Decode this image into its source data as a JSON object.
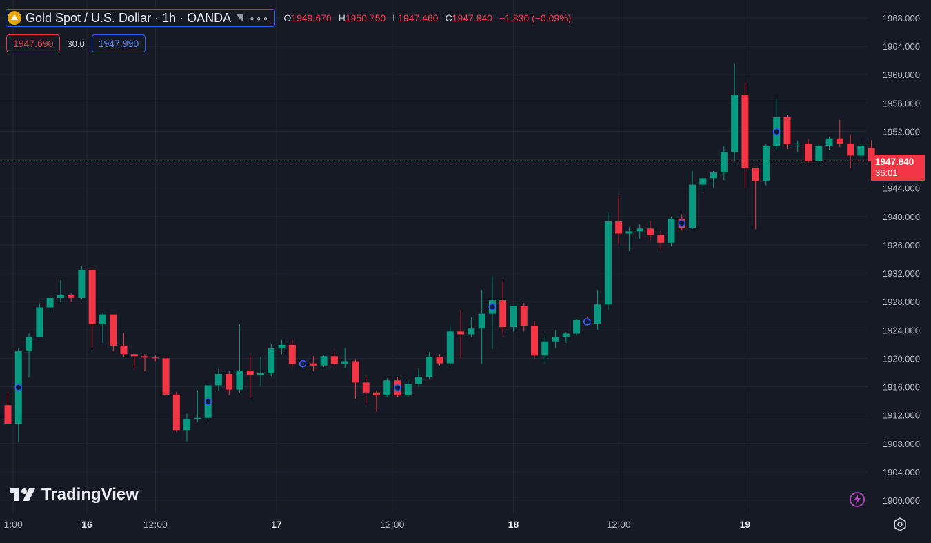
{
  "header": {
    "symbol_title": "Gold Spot / U.S. Dollar · 1h · OANDA",
    "more_label": "∘∘∘",
    "open_key": "O",
    "open": "1949.670",
    "high_key": "H",
    "high": "1950.750",
    "low_key": "L",
    "low": "1947.460",
    "close_key": "C",
    "close": "1947.840",
    "change": "−1.830 (−0.09%)"
  },
  "quote": {
    "bid": "1947.690",
    "spread": "30.0",
    "ask": "1947.990"
  },
  "last_price": {
    "price": "1947.840",
    "countdown": "36:01"
  },
  "brand": {
    "name": "TradingView"
  },
  "colors": {
    "background": "#161a25",
    "grid": "#222633",
    "up": "#089981",
    "down": "#f23645",
    "axis_text": "#b2b5be",
    "marker": "#2962ff"
  },
  "chart_data": {
    "type": "candlestick",
    "title": "Gold Spot / U.S. Dollar · 1h · OANDA",
    "ylim": [
      1898,
      1969
    ],
    "y_ticks": [
      "1968.000",
      "1964.000",
      "1960.000",
      "1956.000",
      "1952.000",
      "1948.000",
      "1944.000",
      "1940.000",
      "1936.000",
      "1932.000",
      "1928.000",
      "1924.000",
      "1920.000",
      "1916.000",
      "1912.000",
      "1908.000",
      "1904.000",
      "1900.000"
    ],
    "x_tick_labels": [
      "1:00",
      "16",
      "12:00",
      "17",
      "12:00",
      "18",
      "12:00",
      "19"
    ],
    "x_tick_bars": [
      0.5,
      7.5,
      14,
      25.5,
      36.5,
      48,
      58,
      70
    ],
    "grid": true,
    "last_price_line": 1947.84,
    "candles": [
      {
        "o": 1913.4,
        "h": 1915.2,
        "l": 1910.8,
        "c": 1910.8
      },
      {
        "o": 1910.8,
        "h": 1921.5,
        "l": 1908.2,
        "c": 1921.0
      },
      {
        "o": 1921.0,
        "h": 1923.5,
        "l": 1917.3,
        "c": 1923.0
      },
      {
        "o": 1923.0,
        "h": 1927.8,
        "l": 1923.0,
        "c": 1927.2
      },
      {
        "o": 1927.2,
        "h": 1928.6,
        "l": 1926.7,
        "c": 1928.5
      },
      {
        "o": 1928.5,
        "h": 1931.0,
        "l": 1927.9,
        "c": 1928.9
      },
      {
        "o": 1928.9,
        "h": 1929.2,
        "l": 1928.0,
        "c": 1928.5
      },
      {
        "o": 1928.5,
        "h": 1933.0,
        "l": 1928.3,
        "c": 1932.5
      },
      {
        "o": 1932.5,
        "h": 1932.5,
        "l": 1921.4,
        "c": 1924.8
      },
      {
        "o": 1924.8,
        "h": 1926.4,
        "l": 1922.2,
        "c": 1926.2
      },
      {
        "o": 1926.2,
        "h": 1926.2,
        "l": 1921.0,
        "c": 1921.8
      },
      {
        "o": 1921.8,
        "h": 1923.6,
        "l": 1920.2,
        "c": 1920.6
      },
      {
        "o": 1920.6,
        "h": 1920.6,
        "l": 1918.6,
        "c": 1920.3
      },
      {
        "o": 1920.3,
        "h": 1920.6,
        "l": 1918.2,
        "c": 1920.1
      },
      {
        "o": 1920.1,
        "h": 1920.4,
        "l": 1919.6,
        "c": 1920.0
      },
      {
        "o": 1920.0,
        "h": 1920.3,
        "l": 1914.6,
        "c": 1914.9
      },
      {
        "o": 1914.9,
        "h": 1915.3,
        "l": 1909.6,
        "c": 1909.9
      },
      {
        "o": 1909.9,
        "h": 1912.2,
        "l": 1908.3,
        "c": 1911.4
      },
      {
        "o": 1911.4,
        "h": 1915.5,
        "l": 1911.0,
        "c": 1911.6
      },
      {
        "o": 1911.6,
        "h": 1916.5,
        "l": 1911.3,
        "c": 1916.2
      },
      {
        "o": 1916.2,
        "h": 1918.5,
        "l": 1915.4,
        "c": 1917.8
      },
      {
        "o": 1917.8,
        "h": 1918.2,
        "l": 1914.8,
        "c": 1915.6
      },
      {
        "o": 1915.6,
        "h": 1924.8,
        "l": 1915.2,
        "c": 1918.3
      },
      {
        "o": 1918.3,
        "h": 1920.5,
        "l": 1914.4,
        "c": 1917.6
      },
      {
        "o": 1917.6,
        "h": 1920.2,
        "l": 1916.1,
        "c": 1917.9
      },
      {
        "o": 1917.9,
        "h": 1922.1,
        "l": 1917.5,
        "c": 1921.4
      },
      {
        "o": 1921.4,
        "h": 1922.6,
        "l": 1920.6,
        "c": 1921.9
      },
      {
        "o": 1921.9,
        "h": 1922.6,
        "l": 1918.8,
        "c": 1919.2
      },
      {
        "o": 1919.2,
        "h": 1919.7,
        "l": 1918.6,
        "c": 1919.3
      },
      {
        "o": 1919.3,
        "h": 1920.3,
        "l": 1918.2,
        "c": 1919.0
      },
      {
        "o": 1919.0,
        "h": 1920.4,
        "l": 1918.8,
        "c": 1920.3
      },
      {
        "o": 1920.3,
        "h": 1920.9,
        "l": 1919.0,
        "c": 1919.2
      },
      {
        "o": 1919.2,
        "h": 1921.5,
        "l": 1918.6,
        "c": 1919.6
      },
      {
        "o": 1919.6,
        "h": 1919.8,
        "l": 1914.3,
        "c": 1916.6
      },
      {
        "o": 1916.6,
        "h": 1917.4,
        "l": 1913.6,
        "c": 1915.2
      },
      {
        "o": 1915.2,
        "h": 1915.5,
        "l": 1912.5,
        "c": 1914.8
      },
      {
        "o": 1914.8,
        "h": 1917.2,
        "l": 1914.5,
        "c": 1916.9
      },
      {
        "o": 1916.9,
        "h": 1917.4,
        "l": 1914.6,
        "c": 1914.8
      },
      {
        "o": 1914.8,
        "h": 1916.9,
        "l": 1914.6,
        "c": 1916.4
      },
      {
        "o": 1916.4,
        "h": 1918.6,
        "l": 1916.0,
        "c": 1917.4
      },
      {
        "o": 1917.4,
        "h": 1920.9,
        "l": 1917.0,
        "c": 1920.2
      },
      {
        "o": 1920.2,
        "h": 1920.6,
        "l": 1919.0,
        "c": 1919.3
      },
      {
        "o": 1919.3,
        "h": 1924.6,
        "l": 1918.9,
        "c": 1923.8
      },
      {
        "o": 1923.8,
        "h": 1926.8,
        "l": 1920.0,
        "c": 1923.4
      },
      {
        "o": 1923.4,
        "h": 1925.8,
        "l": 1923.0,
        "c": 1924.2
      },
      {
        "o": 1924.2,
        "h": 1929.6,
        "l": 1919.2,
        "c": 1926.3
      },
      {
        "o": 1926.3,
        "h": 1931.6,
        "l": 1921.3,
        "c": 1928.2
      },
      {
        "o": 1928.2,
        "h": 1931.0,
        "l": 1923.3,
        "c": 1924.4
      },
      {
        "o": 1924.4,
        "h": 1926.9,
        "l": 1923.8,
        "c": 1927.4
      },
      {
        "o": 1927.4,
        "h": 1927.8,
        "l": 1923.8,
        "c": 1924.6
      },
      {
        "o": 1924.6,
        "h": 1925.3,
        "l": 1919.9,
        "c": 1920.4
      },
      {
        "o": 1920.4,
        "h": 1923.3,
        "l": 1919.3,
        "c": 1922.4
      },
      {
        "o": 1922.4,
        "h": 1923.9,
        "l": 1921.5,
        "c": 1923.0
      },
      {
        "o": 1923.0,
        "h": 1923.7,
        "l": 1922.2,
        "c": 1923.5
      },
      {
        "o": 1923.5,
        "h": 1925.5,
        "l": 1923.2,
        "c": 1925.4
      },
      {
        "o": 1925.4,
        "h": 1925.9,
        "l": 1924.6,
        "c": 1924.9
      },
      {
        "o": 1924.9,
        "h": 1929.6,
        "l": 1924.0,
        "c": 1927.6
      },
      {
        "o": 1927.6,
        "h": 1940.6,
        "l": 1926.9,
        "c": 1939.3
      },
      {
        "o": 1939.3,
        "h": 1942.9,
        "l": 1936.0,
        "c": 1937.6
      },
      {
        "o": 1937.6,
        "h": 1938.5,
        "l": 1935.1,
        "c": 1937.9
      },
      {
        "o": 1937.9,
        "h": 1938.9,
        "l": 1936.9,
        "c": 1938.3
      },
      {
        "o": 1938.3,
        "h": 1939.3,
        "l": 1936.6,
        "c": 1937.4
      },
      {
        "o": 1937.4,
        "h": 1937.9,
        "l": 1935.3,
        "c": 1936.3
      },
      {
        "o": 1936.3,
        "h": 1940.0,
        "l": 1935.8,
        "c": 1939.7
      },
      {
        "o": 1939.7,
        "h": 1940.3,
        "l": 1938.0,
        "c": 1938.4
      },
      {
        "o": 1938.4,
        "h": 1946.4,
        "l": 1938.2,
        "c": 1944.5
      },
      {
        "o": 1944.5,
        "h": 1945.6,
        "l": 1943.6,
        "c": 1945.4
      },
      {
        "o": 1945.4,
        "h": 1946.4,
        "l": 1944.1,
        "c": 1946.2
      },
      {
        "o": 1946.2,
        "h": 1949.9,
        "l": 1945.1,
        "c": 1949.1
      },
      {
        "o": 1949.1,
        "h": 1961.5,
        "l": 1947.8,
        "c": 1957.2
      },
      {
        "o": 1957.2,
        "h": 1958.8,
        "l": 1944.0,
        "c": 1946.9
      },
      {
        "o": 1946.9,
        "h": 1946.9,
        "l": 1938.2,
        "c": 1945.0
      },
      {
        "o": 1945.0,
        "h": 1950.2,
        "l": 1944.4,
        "c": 1949.9
      },
      {
        "o": 1949.9,
        "h": 1956.6,
        "l": 1949.3,
        "c": 1954.0
      },
      {
        "o": 1954.0,
        "h": 1954.3,
        "l": 1949.5,
        "c": 1950.2
      },
      {
        "o": 1950.2,
        "h": 1950.7,
        "l": 1949.1,
        "c": 1950.3
      },
      {
        "o": 1950.3,
        "h": 1950.9,
        "l": 1947.6,
        "c": 1947.8
      },
      {
        "o": 1947.8,
        "h": 1950.2,
        "l": 1947.6,
        "c": 1950.0
      },
      {
        "o": 1950.0,
        "h": 1951.3,
        "l": 1949.4,
        "c": 1951.0
      },
      {
        "o": 1951.0,
        "h": 1953.6,
        "l": 1949.8,
        "c": 1950.3
      },
      {
        "o": 1950.3,
        "h": 1951.6,
        "l": 1946.8,
        "c": 1948.6
      },
      {
        "o": 1948.6,
        "h": 1950.4,
        "l": 1947.8,
        "c": 1950.0
      },
      {
        "o": 1949.67,
        "h": 1950.75,
        "l": 1947.46,
        "c": 1947.84
      }
    ],
    "event_markers": [
      1,
      19,
      28,
      37,
      46,
      55,
      64,
      73
    ]
  }
}
